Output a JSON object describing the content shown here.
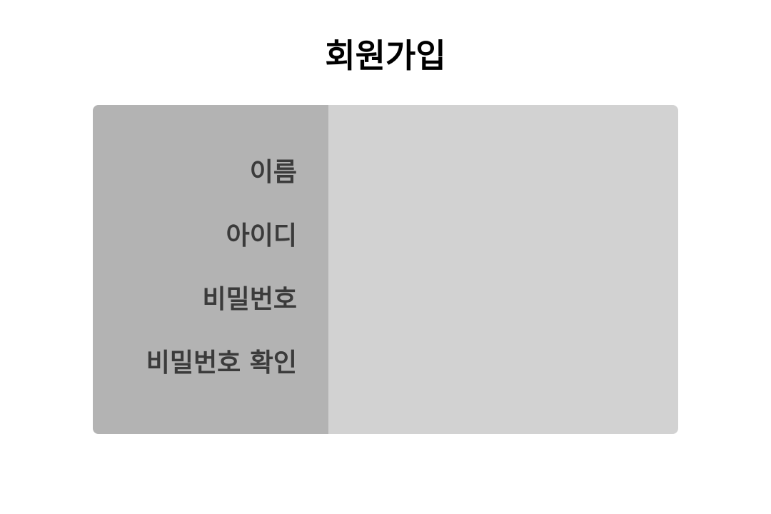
{
  "page": {
    "title": "회원가입"
  },
  "form": {
    "fields": [
      {
        "label": "이름"
      },
      {
        "label": "아이디"
      },
      {
        "label": "비밀번호"
      },
      {
        "label": "비밀번호 확인"
      }
    ]
  },
  "colors": {
    "background": "#ffffff",
    "panel": "#d2d2d2",
    "label_column": "#b3b3b3",
    "label_text": "#3b3b3b",
    "title_text": "#000000"
  }
}
